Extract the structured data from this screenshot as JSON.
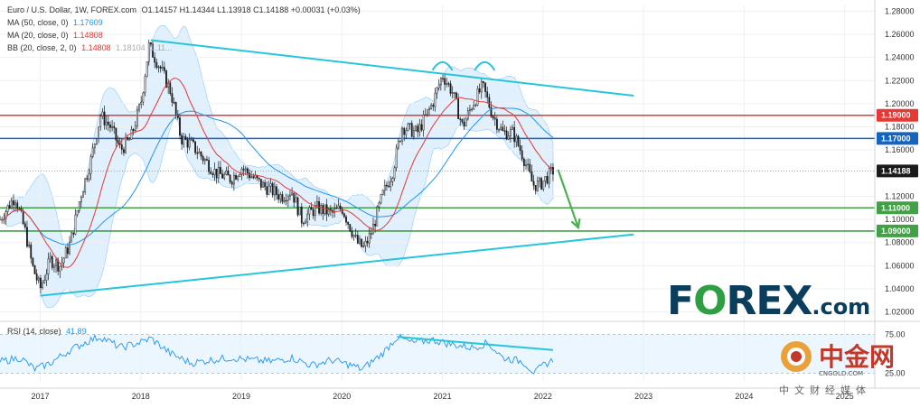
{
  "header": {
    "title": "Euro / U.S. Dollar, 1W, FOREX.com",
    "ohlc": "O1.14157  H1.14344  L1.13918  C1.14188  +0.00031 (+0.03%)"
  },
  "indicators": {
    "ma50_label": "MA (50, close, 0)",
    "ma50_value": "1.17609",
    "ma20_label": "MA (20, close, 0)",
    "ma20_value": "1.14808",
    "bb_label": "BB (20, close, 2, 0)",
    "bb_v1": "1.14808",
    "bb_v2": "1.18104",
    "bb_v3": "1.11..."
  },
  "rsi": {
    "label": "RSI (14, close)",
    "value": "41.89",
    "ticks": [
      "75.00",
      "25.00"
    ]
  },
  "colors": {
    "up": "#1b1b1b",
    "down": "#1b1b1b",
    "ma50": "#2196f3",
    "ma20": "#e53935",
    "bb_fill": "#bbdefb",
    "trend": "#26c6da",
    "red_level": "#e53935",
    "blue_level": "#1565c0",
    "green_level": "#43a047",
    "price_tag": "#1b1b1b"
  },
  "chart_data": {
    "type": "candlestick",
    "symbol": "EURUSD",
    "timeframe": "1W",
    "x_ticks": [
      "2017",
      "2018",
      "2019",
      "2020",
      "2021",
      "2022",
      "2023",
      "2024",
      "2025"
    ],
    "y_ticks": [
      "1.28000",
      "1.26000",
      "1.24000",
      "1.22000",
      "1.20000",
      "1.18000",
      "1.16000",
      "1.12000",
      "1.10000",
      "1.08000",
      "1.06000",
      "1.04000",
      "1.02000"
    ],
    "ylim": [
      1.015,
      1.285
    ],
    "xlim": [
      2016.6,
      2025.3
    ],
    "last_price": "1.14188",
    "levels": [
      {
        "value": 1.19,
        "label": "1.19000",
        "color": "#e53935"
      },
      {
        "value": 1.17,
        "label": "1.17000",
        "color": "#1565c0"
      },
      {
        "value": 1.11,
        "label": "1.11000",
        "color": "#43a047"
      },
      {
        "value": 1.09,
        "label": "1.09000",
        "color": "#43a047"
      }
    ],
    "trendlines": [
      {
        "from": [
          2018.1,
          1.255
        ],
        "to": [
          2022.9,
          1.207
        ]
      },
      {
        "from": [
          2017.0,
          1.034
        ],
        "to": [
          2022.9,
          1.087
        ]
      }
    ],
    "arrow": {
      "from": [
        2022.15,
        1.143
      ],
      "to": [
        2022.35,
        1.093
      ]
    },
    "price_path": [
      [
        2016.6,
        1.1
      ],
      [
        2016.75,
        1.12
      ],
      [
        2016.85,
        1.09
      ],
      [
        2016.92,
        1.06
      ],
      [
        2017.0,
        1.04
      ],
      [
        2017.1,
        1.065
      ],
      [
        2017.2,
        1.06
      ],
      [
        2017.3,
        1.08
      ],
      [
        2017.4,
        1.12
      ],
      [
        2017.5,
        1.15
      ],
      [
        2017.6,
        1.19
      ],
      [
        2017.7,
        1.18
      ],
      [
        2017.8,
        1.16
      ],
      [
        2017.9,
        1.17
      ],
      [
        2018.0,
        1.2
      ],
      [
        2018.08,
        1.25
      ],
      [
        2018.2,
        1.23
      ],
      [
        2018.3,
        1.21
      ],
      [
        2018.4,
        1.17
      ],
      [
        2018.5,
        1.165
      ],
      [
        2018.6,
        1.155
      ],
      [
        2018.75,
        1.14
      ],
      [
        2018.9,
        1.135
      ],
      [
        2019.0,
        1.145
      ],
      [
        2019.2,
        1.13
      ],
      [
        2019.4,
        1.12
      ],
      [
        2019.5,
        1.125
      ],
      [
        2019.6,
        1.1
      ],
      [
        2019.75,
        1.11
      ],
      [
        2019.9,
        1.105
      ],
      [
        2020.0,
        1.11
      ],
      [
        2020.15,
        1.08
      ],
      [
        2020.22,
        1.075
      ],
      [
        2020.3,
        1.09
      ],
      [
        2020.4,
        1.12
      ],
      [
        2020.5,
        1.14
      ],
      [
        2020.6,
        1.18
      ],
      [
        2020.75,
        1.175
      ],
      [
        2020.9,
        1.2
      ],
      [
        2021.0,
        1.225
      ],
      [
        2021.1,
        1.21
      ],
      [
        2021.2,
        1.18
      ],
      [
        2021.3,
        1.2
      ],
      [
        2021.4,
        1.215
      ],
      [
        2021.5,
        1.19
      ],
      [
        2021.6,
        1.175
      ],
      [
        2021.7,
        1.175
      ],
      [
        2021.8,
        1.155
      ],
      [
        2021.9,
        1.13
      ],
      [
        2021.97,
        1.13
      ],
      [
        2022.1,
        1.142
      ]
    ],
    "rsi_path": [
      [
        2016.6,
        40
      ],
      [
        2016.8,
        45
      ],
      [
        2016.95,
        30
      ],
      [
        2017.1,
        38
      ],
      [
        2017.3,
        55
      ],
      [
        2017.5,
        68
      ],
      [
        2017.6,
        72
      ],
      [
        2017.8,
        58
      ],
      [
        2018.0,
        65
      ],
      [
        2018.1,
        70
      ],
      [
        2018.3,
        50
      ],
      [
        2018.5,
        38
      ],
      [
        2018.7,
        42
      ],
      [
        2018.9,
        45
      ],
      [
        2019.1,
        42
      ],
      [
        2019.3,
        40
      ],
      [
        2019.5,
        45
      ],
      [
        2019.7,
        35
      ],
      [
        2019.9,
        42
      ],
      [
        2020.1,
        35
      ],
      [
        2020.2,
        30
      ],
      [
        2020.4,
        50
      ],
      [
        2020.55,
        72
      ],
      [
        2020.7,
        64
      ],
      [
        2020.9,
        68
      ],
      [
        2021.1,
        62
      ],
      [
        2021.3,
        58
      ],
      [
        2021.45,
        64
      ],
      [
        2021.6,
        45
      ],
      [
        2021.8,
        40
      ],
      [
        2021.92,
        25
      ],
      [
        2022.0,
        35
      ],
      [
        2022.1,
        42
      ]
    ],
    "rsi_ylim": [
      15,
      85
    ],
    "rsi_divergence": {
      "from": [
        2020.55,
        72
      ],
      "to": [
        2022.1,
        55
      ]
    }
  },
  "logo": {
    "pre": "F",
    "o": "O",
    "post": "REX",
    "suffix": ".com"
  },
  "watermark": {
    "text": "中金网",
    "domain": "CNGOLD.COM",
    "sub": "中文财经媒体"
  }
}
